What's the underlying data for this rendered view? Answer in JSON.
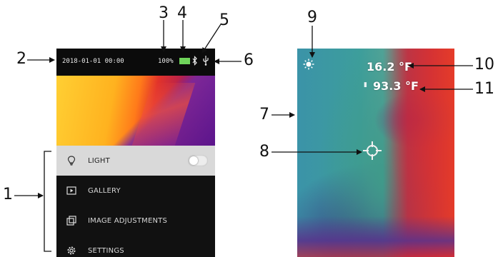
{
  "left_screen": {
    "status_bar": {
      "datetime": "2018-01-01  00:00",
      "battery_percent": "100%"
    },
    "menu": [
      {
        "label": "LIGHT",
        "icon": "bulb-icon",
        "active": true
      },
      {
        "label": "GALLERY",
        "icon": "play-icon",
        "active": false
      },
      {
        "label": "IMAGE ADJUSTMENTS",
        "icon": "image-adjust-icon",
        "active": false
      },
      {
        "label": "SETTINGS",
        "icon": "gear-icon",
        "active": false
      }
    ]
  },
  "right_screen": {
    "max_temp": "16.2 °F",
    "min_temp": "93.3 °F"
  },
  "callouts": [
    "1",
    "2",
    "3",
    "4",
    "5",
    "6",
    "7",
    "8",
    "9",
    "10",
    "11"
  ],
  "colors": {
    "active_row": "#d9d9d9",
    "screen_bg": "#0b0b0b",
    "battery": "#6fd35a"
  }
}
